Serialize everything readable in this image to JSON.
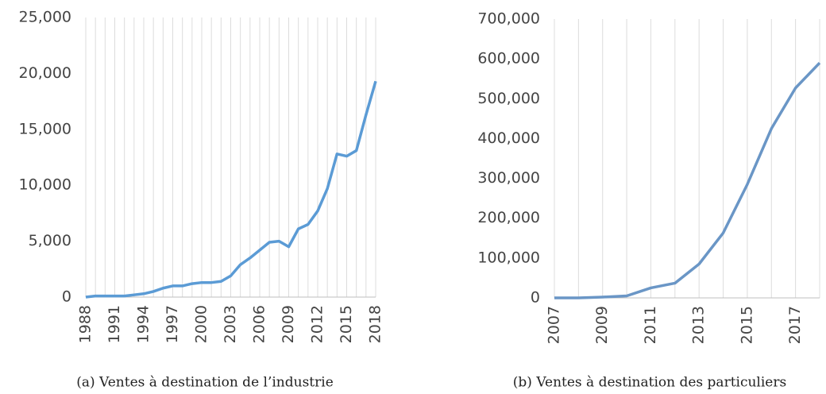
{
  "chart_data": [
    {
      "type": "line",
      "caption": "(a) Ventes à destination de l’industrie",
      "x": [
        1988,
        1989,
        1990,
        1991,
        1992,
        1993,
        1994,
        1995,
        1996,
        1997,
        1998,
        1999,
        2000,
        2001,
        2002,
        2003,
        2004,
        2005,
        2006,
        2007,
        2008,
        2009,
        2010,
        2011,
        2012,
        2013,
        2014,
        2015,
        2016,
        2017,
        2018
      ],
      "series": [
        {
          "color": "#5b9bd5",
          "values": [
            0,
            100,
            100,
            100,
            100,
            200,
            300,
            500,
            800,
            1000,
            1000,
            1200,
            1300,
            1300,
            1400,
            1900,
            2900,
            3500,
            4200,
            4900,
            5000,
            4500,
            6100,
            6500,
            7700,
            9700,
            12800,
            12600,
            13100,
            16300,
            19300
          ]
        }
      ],
      "xlim": [
        1988,
        2018
      ],
      "xticks": [
        1988,
        1991,
        1994,
        1997,
        2000,
        2003,
        2006,
        2009,
        2012,
        2015,
        2018
      ],
      "ylim": [
        0,
        25000
      ],
      "yticks": [
        0,
        {
          "value": 5000,
          "label": "5,000"
        },
        {
          "value": 10000,
          "label": "10,000"
        },
        {
          "value": 15000,
          "label": "15,000"
        },
        {
          "value": 20000,
          "label": "20,000"
        },
        {
          "value": 25000,
          "label": "25,000"
        }
      ],
      "grid": true
    },
    {
      "type": "line",
      "caption": "(b) Ventes à destination des particuliers",
      "x": [
        2007,
        2008,
        2009,
        2010,
        2011,
        2012,
        2013,
        2014,
        2015,
        2016,
        2017,
        2018
      ],
      "series": [
        {
          "color": "#6a96c6",
          "values": [
            0,
            0,
            2000,
            5000,
            25000,
            37000,
            85000,
            163000,
            285000,
            425000,
            527000,
            590000
          ]
        }
      ],
      "xlim": [
        2007,
        2018
      ],
      "xticks": [
        2007,
        2009,
        2011,
        2013,
        2015,
        2017
      ],
      "ylim": [
        0,
        700000
      ],
      "yticks": [
        0,
        {
          "value": 100000,
          "label": "100,000"
        },
        {
          "value": 200000,
          "label": "200,000"
        },
        {
          "value": 300000,
          "label": "300,000"
        },
        {
          "value": 400000,
          "label": "400,000"
        },
        {
          "value": 500000,
          "label": "500,000"
        },
        {
          "value": 600000,
          "label": "600,000"
        },
        {
          "value": 700000,
          "label": "700,000"
        }
      ],
      "grid": true
    }
  ]
}
